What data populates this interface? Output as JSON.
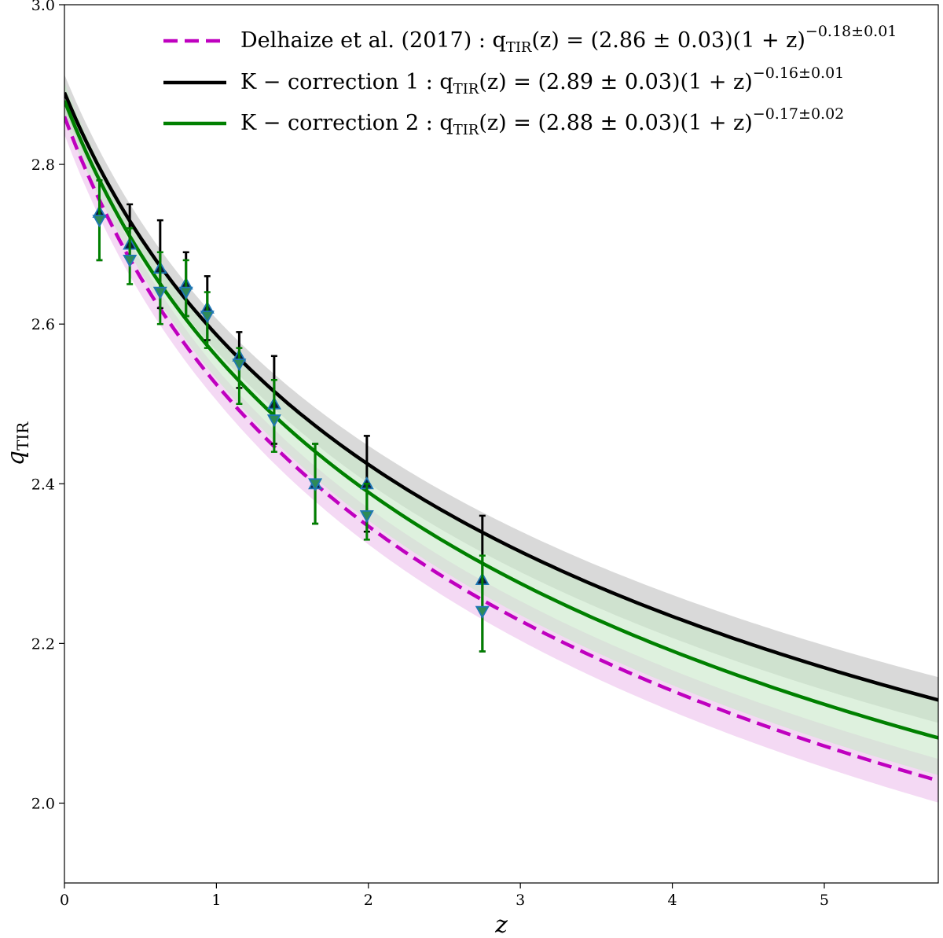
{
  "chart_data": {
    "type": "line",
    "title": "",
    "xlabel": "z",
    "ylabel": "q",
    "ylabel_sub": "TIR",
    "xlim": [
      0,
      5.75
    ],
    "ylim": [
      1.9,
      3.0
    ],
    "xticks": [
      0,
      1,
      2,
      3,
      4,
      5
    ],
    "xtick_labels": [
      "0",
      "1",
      "2",
      "3",
      "4",
      "5"
    ],
    "yticks": [
      2.0,
      2.2,
      2.4,
      2.6,
      2.8,
      3.0
    ],
    "ytick_labels": [
      "2.0",
      "2.2",
      "2.4",
      "2.6",
      "2.8",
      "3.0"
    ],
    "legend_position": "top-right",
    "series": [
      {
        "name": "Delhaize et al. (2017)",
        "style": "dashed",
        "color": "#bf00bf",
        "band_color": "#ecbfec",
        "norm": 2.86,
        "norm_err": 0.03,
        "slope": -0.18,
        "slope_err": 0.01,
        "legend": {
          "prefix": "Delhaize et al. (2017) :  q",
          "sub": "TIR",
          "main": "(z) = (2.86 ± 0.03)(1 + z)",
          "sup": "−0.18±0.01"
        }
      },
      {
        "name": "K − correction 1",
        "style": "solid",
        "color": "#000000",
        "band_color": "#bfbfbf",
        "norm": 2.89,
        "norm_err": 0.03,
        "slope": -0.16,
        "slope_err": 0.01,
        "legend": {
          "prefix": "K − correction 1 :  q",
          "sub": "TIR",
          "main": "(z) = (2.89 ± 0.03)(1 + z)",
          "sup": "−0.16±0.01"
        }
      },
      {
        "name": "K − correction 2",
        "style": "solid",
        "color": "#008000",
        "band_color": "#c8e8c8",
        "norm": 2.88,
        "norm_err": 0.03,
        "slope": -0.17,
        "slope_err": 0.02,
        "legend": {
          "prefix": "K − correction 2 :  q",
          "sub": "TIR",
          "main": "(z) = (2.88 ± 0.03)(1 + z)",
          "sup": "−0.17±0.02"
        }
      }
    ],
    "points": {
      "up": {
        "name": "K-correction 1 data",
        "marker": "triangle-up",
        "fill": "#0d1a3a",
        "edge": "#1f77b4",
        "err_color": "#000000",
        "x": [
          0.23,
          0.43,
          0.63,
          0.8,
          0.94,
          1.15,
          1.38,
          1.65,
          1.99,
          2.75
        ],
        "y": [
          2.74,
          2.7,
          2.67,
          2.65,
          2.62,
          2.56,
          2.5,
          2.4,
          2.4,
          2.28
        ],
        "y_lo": [
          2.68,
          2.68,
          2.62,
          2.61,
          2.58,
          2.52,
          2.45,
          2.35,
          2.34,
          2.19
        ],
        "y_hi": [
          2.78,
          2.75,
          2.73,
          2.69,
          2.66,
          2.59,
          2.56,
          2.45,
          2.46,
          2.36
        ]
      },
      "down": {
        "name": "K-correction 2 data",
        "marker": "triangle-down",
        "fill": "#2e8b57",
        "edge": "#1f77b4",
        "err_color": "#008000",
        "x": [
          0.23,
          0.43,
          0.63,
          0.8,
          0.94,
          1.15,
          1.38,
          1.65,
          1.99,
          2.75
        ],
        "y": [
          2.73,
          2.68,
          2.64,
          2.64,
          2.61,
          2.55,
          2.48,
          2.4,
          2.36,
          2.24
        ],
        "y_lo": [
          2.68,
          2.65,
          2.6,
          2.61,
          2.57,
          2.5,
          2.44,
          2.35,
          2.33,
          2.19
        ],
        "y_hi": [
          2.78,
          2.72,
          2.69,
          2.68,
          2.64,
          2.57,
          2.53,
          2.45,
          2.4,
          2.31
        ]
      }
    }
  }
}
